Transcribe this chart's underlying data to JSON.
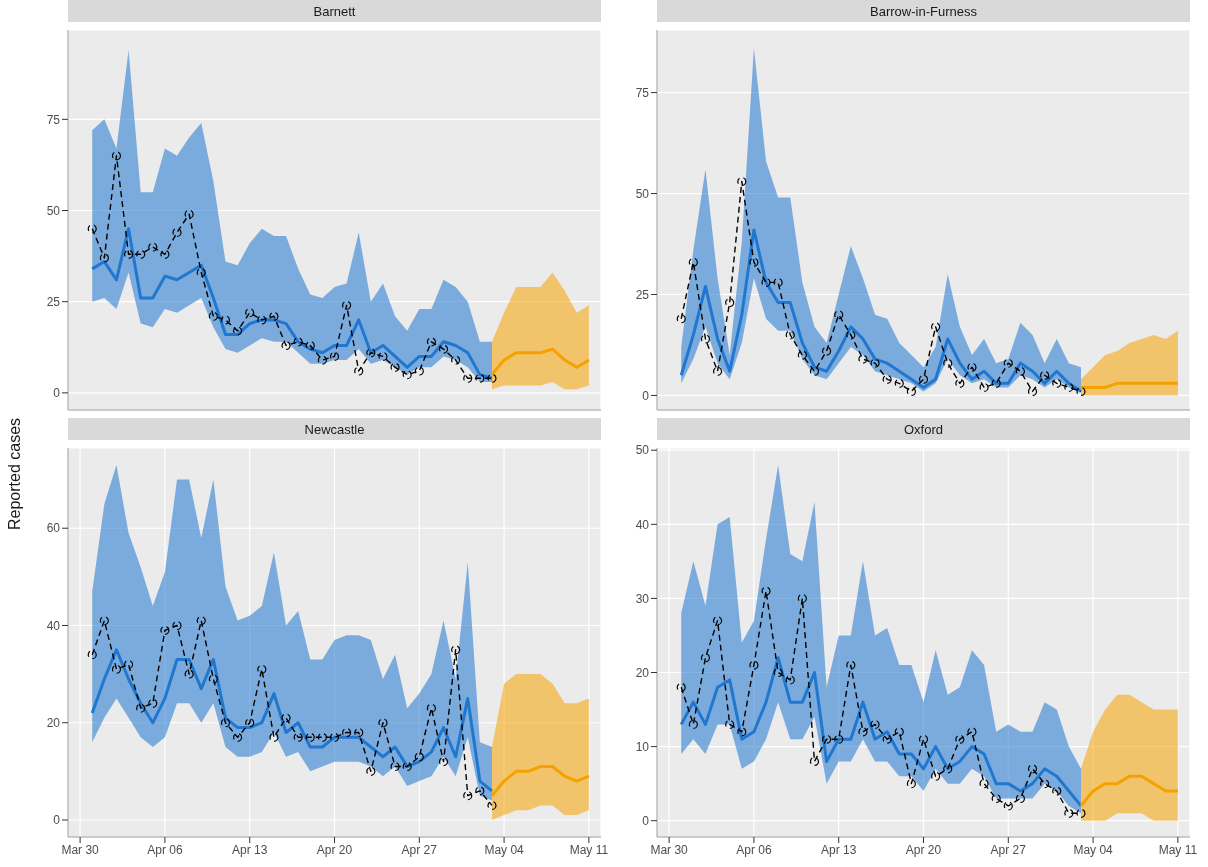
{
  "chart_data": [
    {
      "type": "line",
      "title": "Barnett",
      "x": [
        "--03-31",
        "--04-01",
        "--04-02",
        "--04-03",
        "--04-04",
        "--04-05",
        "--04-06",
        "--04-07",
        "--04-08",
        "--04-09",
        "--04-10",
        "--04-11",
        "--04-12",
        "--04-13",
        "--04-14",
        "--04-15",
        "--04-16",
        "--04-17",
        "--04-18",
        "--04-19",
        "--04-20",
        "--04-21",
        "--04-22",
        "--04-23",
        "--04-24",
        "--04-25",
        "--04-26",
        "--04-27",
        "--04-28",
        "--04-29",
        "--04-30",
        "--05-01",
        "--05-02",
        "--05-03"
      ],
      "xlim": [
        "--03-29",
        "--05-12"
      ],
      "xticks": [
        {
          "value": "--03-30",
          "label": "Mar 30"
        },
        {
          "value": "--04-06",
          "label": "Apr 06"
        },
        {
          "value": "--04-13",
          "label": "Apr 13"
        },
        {
          "value": "--04-20",
          "label": "Apr 20"
        },
        {
          "value": "--04-27",
          "label": "Apr 27"
        },
        {
          "value": "--05-04",
          "label": "May 04"
        },
        {
          "value": "--05-11",
          "label": "May 11"
        }
      ],
      "ylim": [
        -4.7,
        99.5
      ],
      "yticks": [
        0,
        25,
        50,
        75
      ],
      "grid": true,
      "tick_labels": "y",
      "series": [
        {
          "color": "#1f77d0",
          "values": [
            34,
            36,
            31,
            45,
            26,
            26,
            32,
            31,
            33,
            35,
            26,
            16,
            16,
            19,
            20,
            20,
            19,
            14,
            12,
            11,
            13,
            13,
            20,
            11,
            13,
            10,
            7,
            10,
            10,
            14,
            13,
            11,
            5,
            4
          ],
          "lower": [
            25,
            26,
            23,
            33,
            19,
            18,
            23,
            22,
            24,
            26,
            18,
            12,
            11,
            13,
            15,
            14,
            14,
            11,
            8,
            8,
            9,
            9,
            12,
            8,
            9,
            7,
            5,
            7,
            7,
            10,
            9,
            7,
            3,
            3
          ],
          "upper": [
            72,
            75,
            67,
            94,
            55,
            55,
            67,
            65,
            70,
            74,
            58,
            36,
            35,
            41,
            45,
            43,
            43,
            34,
            27,
            26,
            29,
            30,
            44,
            25,
            30,
            21,
            17,
            23,
            23,
            31,
            29,
            25,
            14,
            14
          ]
        },
        {
          "color": "#f5a200",
          "x": [
            "--05-03",
            "--05-04",
            "--05-05",
            "--05-06",
            "--05-07",
            "--05-08",
            "--05-09",
            "--05-10",
            "--05-11"
          ],
          "values": [
            5,
            9,
            11,
            11,
            11,
            12,
            9,
            7,
            9
          ],
          "lower": [
            1,
            2,
            2,
            2,
            2,
            3,
            1,
            1,
            2
          ],
          "upper": [
            14,
            22,
            29,
            29,
            29,
            33,
            28,
            22,
            24
          ]
        },
        {
          "color": "#000000",
          "marker": "circle",
          "line_style": "dashed",
          "values": [
            45,
            37,
            65,
            38,
            38,
            40,
            38,
            44,
            49,
            33,
            21,
            20,
            17,
            22,
            20,
            21,
            13,
            14,
            13,
            9,
            10,
            24,
            6,
            11,
            10,
            7,
            5,
            6,
            14,
            12,
            9,
            4,
            4,
            4
          ]
        }
      ]
    },
    {
      "type": "line",
      "title": "Barrow-in-Furness",
      "x": [
        "--03-31",
        "--04-01",
        "--04-02",
        "--04-03",
        "--04-04",
        "--04-05",
        "--04-06",
        "--04-07",
        "--04-08",
        "--04-09",
        "--04-10",
        "--04-11",
        "--04-12",
        "--04-13",
        "--04-14",
        "--04-15",
        "--04-16",
        "--04-17",
        "--04-18",
        "--04-19",
        "--04-20",
        "--04-21",
        "--04-22",
        "--04-23",
        "--04-24",
        "--04-25",
        "--04-26",
        "--04-27",
        "--04-28",
        "--04-29",
        "--04-30",
        "--05-01",
        "--05-02",
        "--05-03"
      ],
      "xlim": [
        "--03-29",
        "--05-12"
      ],
      "xticks": [
        {
          "value": "--03-30",
          "label": "Mar 30"
        },
        {
          "value": "--04-06",
          "label": "Apr 06"
        },
        {
          "value": "--04-13",
          "label": "Apr 13"
        },
        {
          "value": "--04-20",
          "label": "Apr 20"
        },
        {
          "value": "--04-27",
          "label": "Apr 27"
        },
        {
          "value": "--05-04",
          "label": "May 04"
        },
        {
          "value": "--05-11",
          "label": "May 11"
        }
      ],
      "ylim": [
        -3.6,
        90.5
      ],
      "yticks": [
        0,
        25,
        50,
        75
      ],
      "grid": true,
      "tick_labels": "y",
      "series": [
        {
          "color": "#1f77d0",
          "values": [
            5,
            15,
            27,
            14,
            6,
            20,
            41,
            28,
            23,
            23,
            13,
            7,
            6,
            11,
            17,
            14,
            9,
            8,
            6,
            4,
            2,
            4,
            14,
            8,
            4,
            6,
            3,
            3,
            8,
            6,
            3,
            6,
            3,
            1
          ],
          "lower": [
            3,
            9,
            17,
            8,
            4,
            13,
            29,
            19,
            16,
            16,
            9,
            5,
            4,
            8,
            12,
            10,
            6,
            5,
            4,
            3,
            1,
            3,
            9,
            5,
            3,
            4,
            2,
            2,
            5,
            4,
            2,
            4,
            2,
            1
          ],
          "upper": [
            12,
            36,
            56,
            29,
            10,
            38,
            86,
            58,
            49,
            49,
            28,
            17,
            13,
            25,
            37,
            29,
            20,
            19,
            13,
            10,
            7,
            12,
            30,
            17,
            10,
            14,
            8,
            9,
            18,
            15,
            8,
            14,
            8,
            7
          ]
        },
        {
          "color": "#f5a200",
          "x": [
            "--05-03",
            "--05-04",
            "--05-05",
            "--05-06",
            "--05-07",
            "--05-08",
            "--05-09",
            "--05-10",
            "--05-11"
          ],
          "values": [
            2,
            2,
            2,
            3,
            3,
            3,
            3,
            3,
            3
          ],
          "lower": [
            0,
            0,
            0,
            0,
            0,
            0,
            0,
            0,
            0
          ],
          "upper": [
            4,
            7,
            10,
            11,
            13,
            14,
            15,
            14,
            16
          ]
        },
        {
          "color": "#000000",
          "marker": "circle",
          "line_style": "dashed",
          "values": [
            19,
            33,
            14,
            6,
            23,
            53,
            33,
            28,
            28,
            15,
            10,
            6,
            11,
            20,
            15,
            9,
            8,
            4,
            3,
            1,
            4,
            17,
            8,
            3,
            7,
            2,
            3,
            8,
            6,
            1,
            5,
            3,
            2,
            1
          ]
        }
      ]
    },
    {
      "type": "line",
      "title": "Newcastle",
      "ylabel": "Reported cases",
      "x": [
        "--03-31",
        "--04-01",
        "--04-02",
        "--04-03",
        "--04-04",
        "--04-05",
        "--04-06",
        "--04-07",
        "--04-08",
        "--04-09",
        "--04-10",
        "--04-11",
        "--04-12",
        "--04-13",
        "--04-14",
        "--04-15",
        "--04-16",
        "--04-17",
        "--04-18",
        "--04-19",
        "--04-20",
        "--04-21",
        "--04-22",
        "--04-23",
        "--04-24",
        "--04-25",
        "--04-26",
        "--04-27",
        "--04-28",
        "--04-29",
        "--04-30",
        "--05-01",
        "--05-02",
        "--05-03"
      ],
      "xlim": [
        "--03-29",
        "--05-12"
      ],
      "xticks": [
        {
          "value": "--03-30",
          "label": "Mar 30"
        },
        {
          "value": "--04-06",
          "label": "Apr 06"
        },
        {
          "value": "--04-13",
          "label": "Apr 13"
        },
        {
          "value": "--04-20",
          "label": "Apr 20"
        },
        {
          "value": "--04-27",
          "label": "Apr 27"
        },
        {
          "value": "--05-04",
          "label": "May 04"
        },
        {
          "value": "--05-11",
          "label": "May 11"
        }
      ],
      "ylim": [
        -3.5,
        76.5
      ],
      "yticks": [
        0,
        20,
        40,
        60
      ],
      "grid": true,
      "series": [
        {
          "color": "#1f77d0",
          "values": [
            22,
            29,
            35,
            29,
            24,
            20,
            25,
            33,
            33,
            27,
            33,
            21,
            19,
            19,
            20,
            26,
            18,
            20,
            15,
            15,
            17,
            17,
            17,
            15,
            13,
            15,
            11,
            12,
            14,
            19,
            13,
            25,
            8,
            6
          ],
          "lower": [
            16,
            21,
            25,
            21,
            17,
            15,
            17,
            24,
            24,
            20,
            24,
            15,
            13,
            13,
            14,
            18,
            13,
            14,
            10,
            11,
            12,
            12,
            12,
            11,
            9,
            11,
            7,
            8,
            9,
            13,
            9,
            17,
            5,
            4
          ],
          "upper": [
            47,
            65,
            73,
            59,
            52,
            44,
            51,
            70,
            70,
            58,
            70,
            48,
            41,
            42,
            44,
            55,
            40,
            43,
            33,
            33,
            37,
            38,
            38,
            37,
            29,
            34,
            23,
            26,
            30,
            41,
            29,
            53,
            16,
            15
          ]
        },
        {
          "color": "#f5a200",
          "x": [
            "--05-03",
            "--05-04",
            "--05-05",
            "--05-06",
            "--05-07",
            "--05-08",
            "--05-09",
            "--05-10",
            "--05-11"
          ],
          "values": [
            5,
            8,
            10,
            10,
            11,
            11,
            9,
            8,
            9
          ],
          "lower": [
            0,
            1,
            2,
            2,
            3,
            3,
            1,
            1,
            2
          ],
          "upper": [
            15,
            28,
            30,
            30,
            30,
            28,
            24,
            24,
            25
          ]
        },
        {
          "color": "#000000",
          "marker": "circle",
          "line_style": "dashed",
          "values": [
            34,
            41,
            31,
            32,
            23,
            24,
            39,
            40,
            30,
            41,
            29,
            20,
            17,
            20,
            31,
            17,
            21,
            17,
            17,
            17,
            17,
            18,
            18,
            10,
            20,
            11,
            11,
            13,
            23,
            12,
            35,
            5,
            6,
            3
          ]
        }
      ]
    },
    {
      "type": "line",
      "title": "Oxford",
      "x": [
        "--03-31",
        "--04-01",
        "--04-02",
        "--04-03",
        "--04-04",
        "--04-05",
        "--04-06",
        "--04-07",
        "--04-08",
        "--04-09",
        "--04-10",
        "--04-11",
        "--04-12",
        "--04-13",
        "--04-14",
        "--04-15",
        "--04-16",
        "--04-17",
        "--04-18",
        "--04-19",
        "--04-20",
        "--04-21",
        "--04-22",
        "--04-23",
        "--04-24",
        "--04-25",
        "--04-26",
        "--04-27",
        "--04-28",
        "--04-29",
        "--04-30",
        "--05-01",
        "--05-02",
        "--05-03"
      ],
      "xlim": [
        "--03-29",
        "--05-12"
      ],
      "xticks": [
        {
          "value": "--03-30",
          "label": "Mar 30"
        },
        {
          "value": "--04-06",
          "label": "Apr 06"
        },
        {
          "value": "--04-13",
          "label": "Apr 13"
        },
        {
          "value": "--04-20",
          "label": "Apr 20"
        },
        {
          "value": "--04-27",
          "label": "Apr 27"
        },
        {
          "value": "--05-04",
          "label": "May 04"
        },
        {
          "value": "--05-11",
          "label": "May 11"
        }
      ],
      "ylim": [
        -2.2,
        50.3
      ],
      "yticks": [
        0,
        10,
        20,
        30,
        40,
        50
      ],
      "grid": true,
      "series": [
        {
          "color": "#1f77d0",
          "values": [
            13,
            16,
            13,
            18,
            19,
            11,
            12,
            16,
            22,
            16,
            16,
            20,
            8,
            11,
            11,
            16,
            11,
            12,
            9,
            9,
            7,
            10,
            7,
            8,
            10,
            9,
            5,
            5,
            4,
            5,
            7,
            6,
            4,
            2
          ],
          "lower": [
            9,
            11,
            9,
            13,
            13,
            7,
            8,
            11,
            16,
            11,
            11,
            14,
            5,
            8,
            8,
            11,
            8,
            8,
            6,
            6,
            4,
            7,
            5,
            5,
            7,
            6,
            3,
            3,
            3,
            3,
            5,
            4,
            2,
            1
          ],
          "upper": [
            28,
            35,
            29,
            40,
            41,
            24,
            27,
            38,
            48,
            36,
            35,
            43,
            18,
            25,
            25,
            35,
            25,
            26,
            21,
            21,
            16,
            23,
            17,
            18,
            23,
            21,
            12,
            13,
            12,
            12,
            16,
            15,
            10,
            7
          ]
        },
        {
          "color": "#f5a200",
          "x": [
            "--05-03",
            "--05-04",
            "--05-05",
            "--05-06",
            "--05-07",
            "--05-08",
            "--05-09",
            "--05-10",
            "--05-11"
          ],
          "values": [
            2,
            4,
            5,
            5,
            6,
            6,
            5,
            4,
            4
          ],
          "lower": [
            0,
            0,
            0,
            1,
            1,
            1,
            0,
            0,
            0
          ],
          "upper": [
            7,
            12,
            15,
            17,
            17,
            16,
            15,
            15,
            15
          ]
        },
        {
          "color": "#000000",
          "marker": "circle",
          "line_style": "dashed",
          "values": [
            18,
            13,
            22,
            27,
            13,
            12,
            21,
            31,
            20,
            19,
            30,
            8,
            11,
            11,
            21,
            12,
            13,
            11,
            12,
            5,
            11,
            6,
            7,
            11,
            12,
            5,
            3,
            2,
            3,
            7,
            5,
            4,
            1,
            1
          ]
        }
      ]
    }
  ]
}
